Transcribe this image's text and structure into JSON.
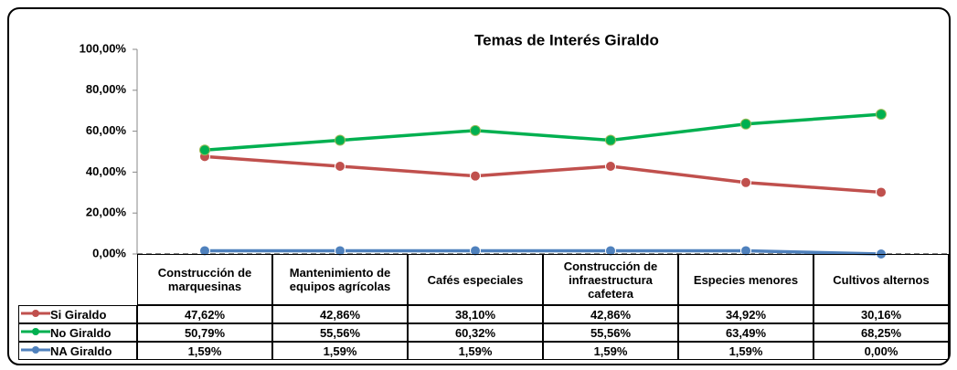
{
  "chart_data": {
    "type": "line",
    "title": "Temas de Interés Giraldo",
    "categories": [
      "Construcción de marquesinas",
      "Mantenimiento de equipos agrícolas",
      "Cafés especiales",
      "Construcción de infraestructura cafetera",
      "Especies menores",
      "Cultivos alternos"
    ],
    "series": [
      {
        "name": "Si Giraldo",
        "color": "#c0504d",
        "values": [
          47.62,
          42.86,
          38.1,
          42.86,
          34.92,
          30.16
        ],
        "value_labels": [
          "47,62%",
          "42,86%",
          "38,10%",
          "42,86%",
          "34,92%",
          "30,16%"
        ]
      },
      {
        "name": "No Giraldo",
        "color": "#00b050",
        "values": [
          50.79,
          55.56,
          60.32,
          55.56,
          63.49,
          68.25
        ],
        "value_labels": [
          "50,79%",
          "55,56%",
          "60,32%",
          "55,56%",
          "63,49%",
          "68,25%"
        ]
      },
      {
        "name": "NA Giraldo",
        "color": "#4f81bd",
        "values": [
          1.59,
          1.59,
          1.59,
          1.59,
          1.59,
          0.0
        ],
        "value_labels": [
          "1,59%",
          "1,59%",
          "1,59%",
          "1,59%",
          "1,59%",
          "0,00%"
        ]
      }
    ],
    "ylim": [
      0,
      100
    ],
    "yticks": [
      {
        "value": 0,
        "label": "0,00%"
      },
      {
        "value": 20,
        "label": "20,00%"
      },
      {
        "value": 40,
        "label": "40,00%"
      },
      {
        "value": 60,
        "label": "60,00%"
      },
      {
        "value": 80,
        "label": "80,00%"
      },
      {
        "value": 100,
        "label": "100,00%"
      }
    ]
  }
}
